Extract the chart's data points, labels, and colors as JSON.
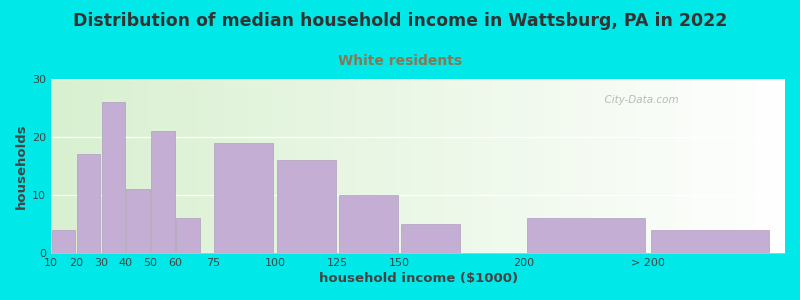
{
  "title": "Distribution of median household income in Wattsburg, PA in 2022",
  "subtitle": "White residents",
  "xlabel": "household income ($1000)",
  "ylabel": "households",
  "background_outer": "#00e8e8",
  "background_inner_left": "#d8f0d0",
  "background_inner_right": "#ffffff",
  "bar_color": "#c4aed4",
  "bar_edge_color": "#b09fc0",
  "title_color": "#333333",
  "title_fontsize": 12.5,
  "subtitle_fontsize": 10,
  "subtitle_color": "#887755",
  "values": [
    4,
    17,
    26,
    11,
    21,
    6,
    19,
    16,
    10,
    5,
    6,
    4
  ],
  "bar_widths": [
    10,
    10,
    10,
    10,
    10,
    10,
    25,
    25,
    25,
    25,
    50,
    50
  ],
  "bar_lefts": [
    10,
    20,
    30,
    40,
    50,
    60,
    75,
    100,
    125,
    150,
    200,
    250
  ],
  "xmin": 10,
  "xmax": 305,
  "ylim": [
    0,
    30
  ],
  "yticks": [
    0,
    10,
    20,
    30
  ],
  "tick_positions": [
    10,
    20,
    30,
    40,
    50,
    60,
    75,
    100,
    125,
    150,
    200,
    250
  ],
  "tick_labels": [
    "10",
    "20",
    "30",
    "40",
    "50",
    "60",
    "75",
    "100",
    "125",
    "150",
    "200",
    "> 200"
  ],
  "watermark": "  City-Data.com"
}
